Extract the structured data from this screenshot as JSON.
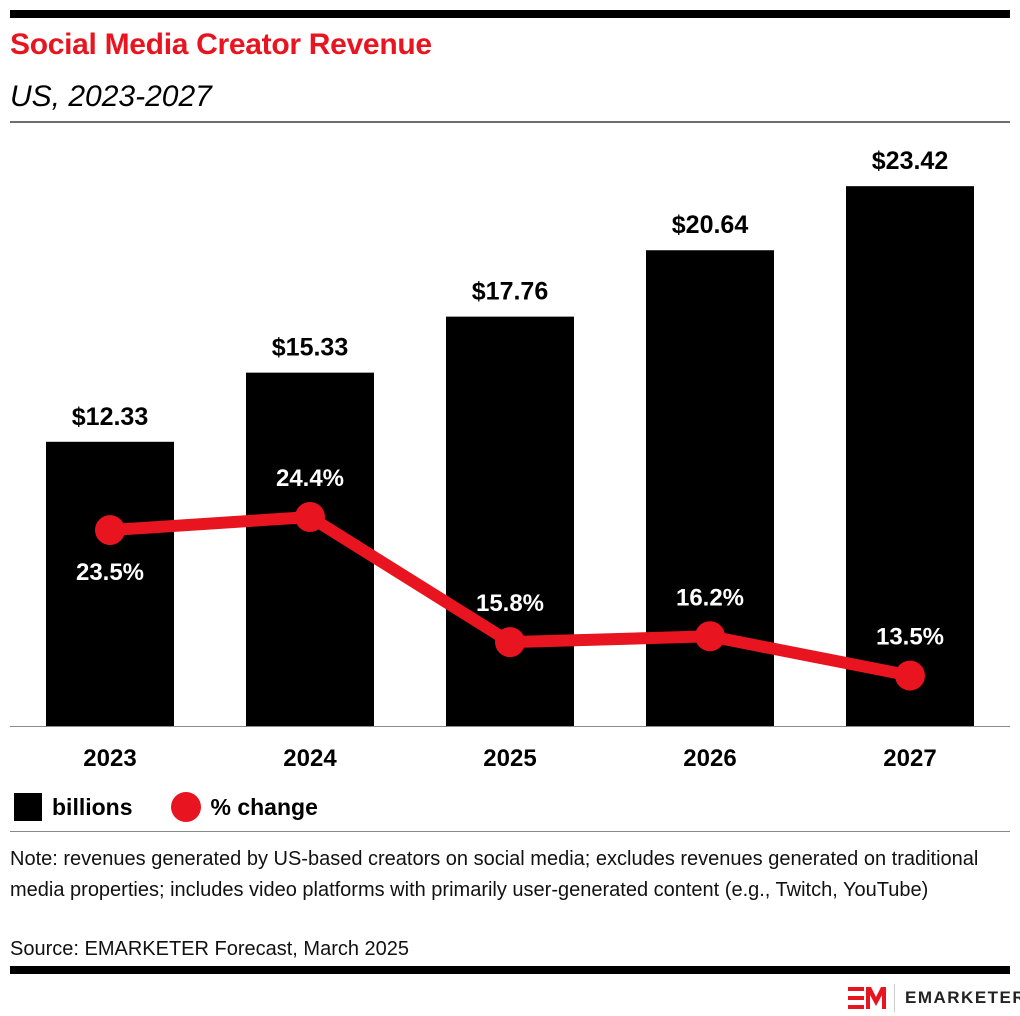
{
  "header": {
    "title": "Social Media Creator Revenue",
    "subtitle": "US, 2023-2027"
  },
  "chart_data": {
    "type": "bar+line",
    "title": "Social Media Creator Revenue",
    "subtitle": "US, 2023-2027",
    "categories": [
      "2023",
      "2024",
      "2025",
      "2026",
      "2027"
    ],
    "series": [
      {
        "name": "billions",
        "type": "bar",
        "values": [
          12.33,
          15.33,
          17.76,
          20.64,
          23.42
        ],
        "labels": [
          "$12.33",
          "$15.33",
          "$17.76",
          "$20.64",
          "$23.42"
        ],
        "color": "#000000"
      },
      {
        "name": "% change",
        "type": "line",
        "values": [
          23.5,
          24.4,
          15.8,
          16.2,
          13.5
        ],
        "labels": [
          "23.5%",
          "24.4%",
          "15.8%",
          "16.2%",
          "13.5%"
        ],
        "color": "#e8141f"
      }
    ],
    "legend": "bottom-left",
    "grid": false
  },
  "legend": {
    "bar_label": "billions",
    "line_label": "% change"
  },
  "footer": {
    "note": "Note: revenues generated by US-based creators on social media; excludes revenues generated on traditional media properties; includes video platforms with primarily user-generated content (e.g., Twitch, YouTube)",
    "source": "Source: EMARKETER Forecast, March 2025",
    "brand": "EMARKETER"
  },
  "colors": {
    "accent": "#e8141f",
    "bar": "#000000",
    "rule": "#6e6e6e"
  }
}
